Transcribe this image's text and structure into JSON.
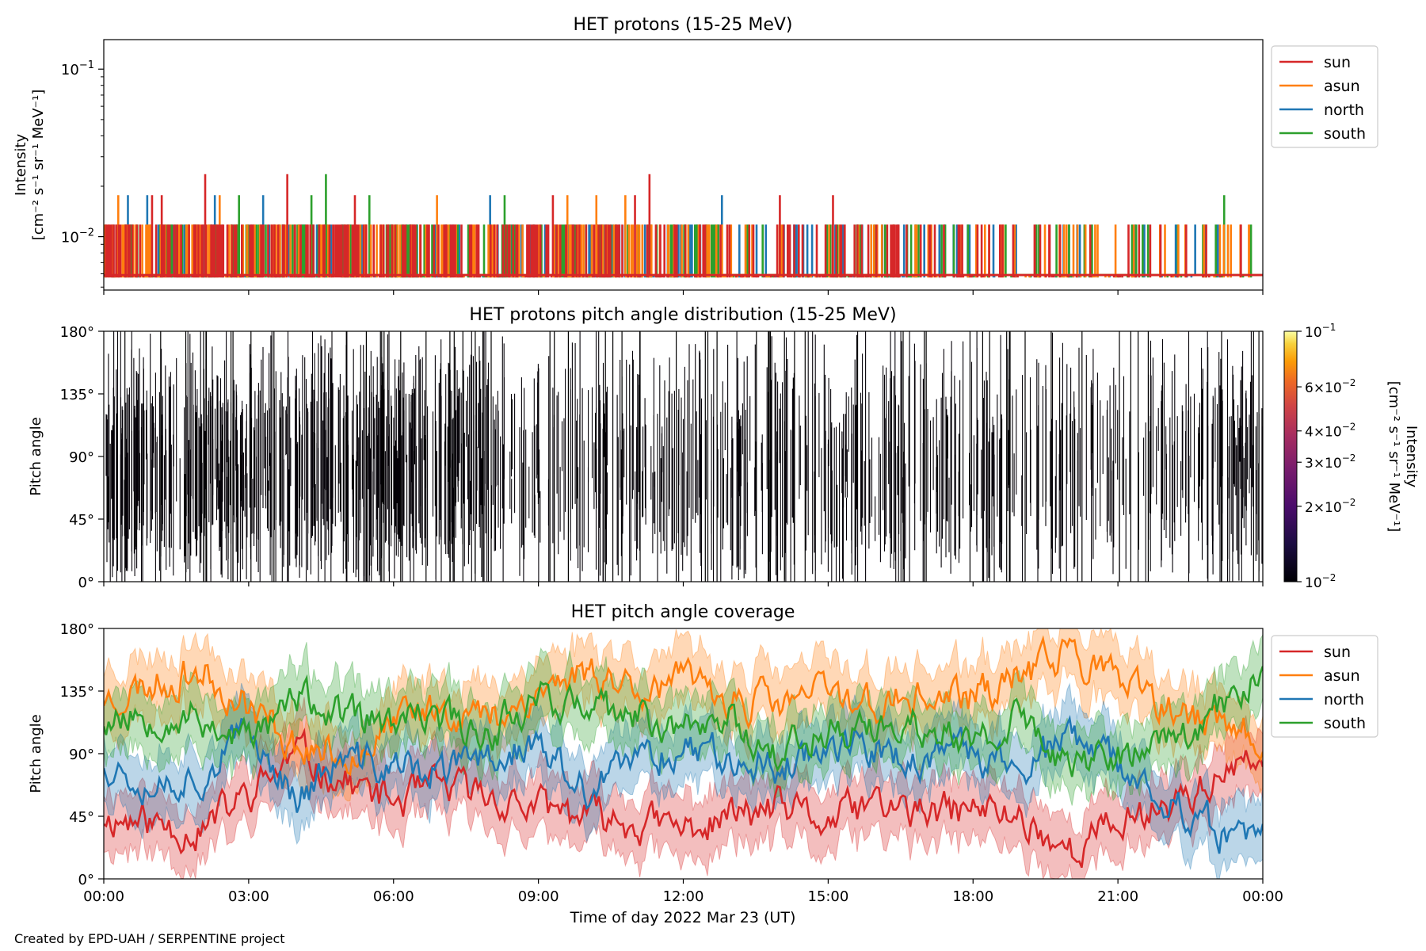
{
  "credit": "Created by EPD-UAH / SERPENTINE project",
  "xaxis": {
    "label": "Time of day 2022 Mar 23 (UT)",
    "ticks": [
      "00:00",
      "03:00",
      "06:00",
      "09:00",
      "12:00",
      "15:00",
      "18:00",
      "21:00",
      "00:00"
    ],
    "range_hours": [
      0,
      24
    ]
  },
  "colors": {
    "sun": "#d62728",
    "asun": "#ff7f0e",
    "north": "#1f77b4",
    "south": "#2ca02c"
  },
  "chart_data": [
    {
      "type": "line",
      "title": "HET protons (15-25 MeV)",
      "ylabel": "Intensity",
      "yunit": "[cm⁻² s⁻¹ sr⁻¹ MeV⁻¹]",
      "yscale": "log",
      "ylim": [
        0.0048,
        0.15
      ],
      "yticks": [
        {
          "value": 0.1,
          "base": "10",
          "exp": "−1"
        },
        {
          "value": 0.01,
          "base": "10",
          "exp": "−2"
        }
      ],
      "background_level": 0.0059,
      "count_levels": [
        0.0059,
        0.0118,
        0.0177,
        0.0236
      ],
      "legend": [
        "sun",
        "asun",
        "north",
        "south"
      ],
      "legend_position": "outside-right-top",
      "series": [
        {
          "name": "sun",
          "spikes": [
            [
              1.0,
              0.0177
            ],
            [
              2.1,
              0.0236
            ],
            [
              3.8,
              0.0236
            ],
            [
              5.2,
              0.0177
            ],
            [
              11.3,
              0.0236
            ],
            [
              14.0,
              0.0177
            ],
            [
              15.1,
              0.0177
            ],
            [
              11.0,
              0.0177
            ],
            [
              9.3,
              0.0177
            ],
            [
              1.2,
              0.0177
            ]
          ]
        },
        {
          "name": "asun",
          "spikes": [
            [
              0.3,
              0.0177
            ],
            [
              2.4,
              0.0177
            ],
            [
              6.9,
              0.0177
            ],
            [
              9.6,
              0.0177
            ],
            [
              10.2,
              0.0177
            ],
            [
              10.8,
              0.0177
            ]
          ]
        },
        {
          "name": "north",
          "spikes": [
            [
              0.5,
              0.0177
            ],
            [
              0.9,
              0.0177
            ],
            [
              2.3,
              0.0177
            ],
            [
              3.3,
              0.0177
            ],
            [
              8.0,
              0.0177
            ],
            [
              12.8,
              0.0177
            ],
            [
              22.6,
              0.0118
            ]
          ]
        },
        {
          "name": "south",
          "spikes": [
            [
              2.8,
              0.0177
            ],
            [
              4.6,
              0.0236
            ],
            [
              4.3,
              0.0177
            ],
            [
              5.5,
              0.0177
            ],
            [
              8.3,
              0.0177
            ],
            [
              23.2,
              0.0177
            ]
          ]
        }
      ]
    },
    {
      "type": "heatmap",
      "title": "HET protons pitch angle distribution (15-25 MeV)",
      "ylabel": "Pitch angle",
      "ylim": [
        0,
        180
      ],
      "yticks": [
        "0°",
        "45°",
        "90°",
        "135°",
        "180°"
      ],
      "colorbar": {
        "label": "Intensity",
        "unit": "[cm⁻² s⁻¹ sr⁻¹ MeV⁻¹]",
        "scale": "log",
        "range": [
          0.01,
          0.1
        ],
        "colormap": "inferno",
        "ticks": [
          {
            "value": 0.1,
            "text": "10",
            "exp": "−1"
          },
          {
            "value": 0.06,
            "text": "6×10",
            "exp": "−2"
          },
          {
            "value": 0.04,
            "text": "4×10",
            "exp": "−2"
          },
          {
            "value": 0.03,
            "text": "3×10",
            "exp": "−2"
          },
          {
            "value": 0.02,
            "text": "2×10",
            "exp": "−2"
          },
          {
            "value": 0.01,
            "text": "10",
            "exp": "−2"
          }
        ]
      },
      "note": "dense vertical streaks near the low end of the colour scale throughout the day"
    },
    {
      "type": "area",
      "title": "HET pitch angle coverage",
      "ylabel": "Pitch angle",
      "ylim": [
        0,
        180
      ],
      "yticks": [
        "0°",
        "45°",
        "90°",
        "135°",
        "180°"
      ],
      "legend": [
        "sun",
        "asun",
        "north",
        "south"
      ],
      "legend_position": "outside-right-top",
      "series": [
        {
          "name": "sun",
          "x": [
            0,
            1,
            2,
            3,
            4,
            5,
            6,
            7,
            8,
            9,
            10,
            11,
            12,
            13,
            14,
            15,
            16,
            17,
            18,
            19,
            20,
            21,
            22,
            23,
            24
          ],
          "center": [
            45,
            40,
            35,
            60,
            90,
            70,
            55,
            65,
            60,
            50,
            45,
            40,
            35,
            45,
            50,
            40,
            55,
            45,
            50,
            45,
            20,
            40,
            55,
            70,
            85
          ],
          "halfwidth": [
            22,
            22,
            22,
            22,
            22,
            22,
            22,
            22,
            22,
            22,
            22,
            22,
            22,
            22,
            22,
            22,
            22,
            22,
            22,
            22,
            22,
            22,
            22,
            22,
            22
          ]
        },
        {
          "name": "asun",
          "x": [
            0,
            1,
            2,
            3,
            4,
            5,
            6,
            7,
            8,
            9,
            10,
            11,
            12,
            13,
            14,
            15,
            16,
            17,
            18,
            19,
            20,
            21,
            22,
            23,
            24
          ],
          "center": [
            130,
            140,
            150,
            125,
            95,
            90,
            110,
            125,
            115,
            135,
            150,
            140,
            140,
            130,
            125,
            135,
            125,
            130,
            130,
            145,
            165,
            140,
            120,
            110,
            100
          ],
          "halfwidth": [
            22,
            22,
            22,
            22,
            22,
            22,
            22,
            22,
            22,
            22,
            22,
            22,
            22,
            22,
            22,
            22,
            22,
            22,
            22,
            22,
            22,
            22,
            22,
            22,
            22
          ]
        },
        {
          "name": "north",
          "x": [
            0,
            1,
            2,
            3,
            4,
            5,
            6,
            7,
            8,
            9,
            10,
            11,
            12,
            13,
            14,
            15,
            16,
            17,
            18,
            19,
            20,
            21,
            22,
            23,
            24
          ],
          "center": [
            85,
            70,
            75,
            105,
            60,
            85,
            80,
            75,
            90,
            95,
            60,
            85,
            95,
            90,
            80,
            100,
            90,
            85,
            90,
            80,
            100,
            80,
            60,
            35,
            25
          ],
          "halfwidth": [
            22,
            22,
            22,
            22,
            22,
            22,
            22,
            22,
            22,
            22,
            22,
            22,
            22,
            22,
            22,
            22,
            22,
            22,
            22,
            22,
            22,
            22,
            22,
            22,
            22
          ]
        },
        {
          "name": "south",
          "x": [
            0,
            1,
            2,
            3,
            4,
            5,
            6,
            7,
            8,
            9,
            10,
            11,
            12,
            13,
            14,
            15,
            16,
            17,
            18,
            19,
            20,
            21,
            22,
            23,
            24
          ],
          "center": [
            115,
            120,
            115,
            100,
            130,
            115,
            110,
            115,
            105,
            135,
            120,
            115,
            110,
            115,
            90,
            110,
            105,
            110,
            95,
            115,
            80,
            90,
            95,
            120,
            150
          ],
          "halfwidth": [
            22,
            22,
            22,
            22,
            22,
            22,
            22,
            22,
            22,
            22,
            22,
            22,
            22,
            22,
            22,
            22,
            22,
            22,
            22,
            22,
            22,
            22,
            22,
            22,
            22
          ]
        }
      ]
    }
  ]
}
